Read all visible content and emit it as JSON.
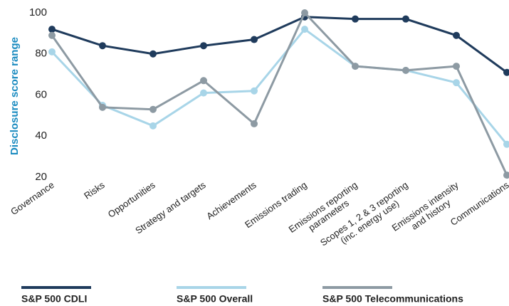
{
  "chart_data": {
    "type": "line",
    "y_label": "Disclosure score range",
    "categories": [
      [
        "Governance"
      ],
      [
        "Risks"
      ],
      [
        "Opportunities"
      ],
      [
        "Strategy and targets"
      ],
      [
        "Achievements"
      ],
      [
        "Emissions trading"
      ],
      [
        "Emissions reporting",
        "parameters"
      ],
      [
        "Scopes 1, 2 & 3 reporting",
        "(inc. energy use)"
      ],
      [
        "Emissions intensity",
        "and history"
      ],
      [
        "Communications"
      ]
    ],
    "series": [
      {
        "name": "S&P 500 CDLI",
        "color": "#1f3b5c",
        "values": [
          92,
          84,
          80,
          84,
          87,
          98,
          97,
          97,
          89,
          71
        ]
      },
      {
        "name": "S&P 500 Overall",
        "color": "#a8d5e8",
        "values": [
          81,
          55,
          45,
          61,
          62,
          92,
          74,
          72,
          66,
          36
        ]
      },
      {
        "name": "S&P 500 Telecommunications",
        "color": "#8d9aa3",
        "values": [
          89,
          54,
          53,
          67,
          46,
          100,
          74,
          72,
          74,
          21
        ]
      }
    ],
    "ylim": [
      20,
      100
    ],
    "yticks": [
      20,
      40,
      60,
      80,
      100
    ],
    "grid": false,
    "legend": "bottom"
  }
}
